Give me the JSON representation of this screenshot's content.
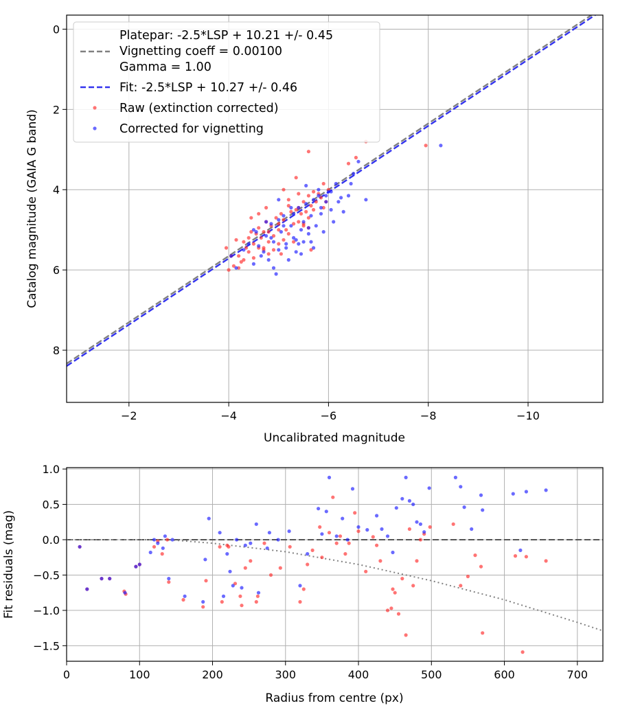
{
  "colors": {
    "platepar_line": "#808080",
    "fit_line": "#3333ee",
    "raw_points": "#ff2a2a",
    "corrected_points": "#1a1aff",
    "grid": "#b0b0b0",
    "zero_line": "#555555",
    "vignetting_curve": "#808080"
  },
  "chart_data": [
    {
      "type": "scatter",
      "xlabel": "Uncalibrated magnitude",
      "ylabel": "Catalog magnitude (GAIA G band)",
      "xlim": [
        -0.75,
        -11.5
      ],
      "ylim": [
        9.3,
        -0.35
      ],
      "x_inverted": true,
      "y_inverted": true,
      "xticks": [
        -2,
        -4,
        -6,
        -8,
        -10
      ],
      "xtick_labels": [
        "−2",
        "−4",
        "−6",
        "−8",
        "−10"
      ],
      "yticks": [
        0,
        2,
        4,
        6,
        8
      ],
      "ytick_labels": [
        "0",
        "2",
        "4",
        "6",
        "8"
      ],
      "grid": true,
      "legend_placement": "upper-left",
      "legend": [
        {
          "label": "Platepar: -2.5*LSP + 10.21 +/- 0.45",
          "marker": "none"
        },
        {
          "label": "Vignetting coeff = 0.00100",
          "marker": "dashed-line",
          "color_key": "platepar_line"
        },
        {
          "label": "Gamma = 1.00",
          "marker": "none"
        },
        {
          "label": "Fit: -2.5*LSP + 10.27 +/- 0.46",
          "marker": "dashed-line",
          "color_key": "fit_line"
        },
        {
          "label": "Raw (extinction corrected)",
          "marker": "dot",
          "color_key": "raw_points"
        },
        {
          "label": "Corrected for vignetting",
          "marker": "dot",
          "color_key": "corrected_points"
        }
      ],
      "lines": [
        {
          "name": "platepar",
          "style": "dashed",
          "color_key": "platepar_line",
          "x": [
            -0.75,
            -11.5
          ],
          "y": [
            8.335,
            -0.54
          ]
        },
        {
          "name": "fit",
          "style": "dashed",
          "color_key": "fit_line",
          "x": [
            -0.75,
            -11.5
          ],
          "y": [
            8.395,
            -0.48
          ]
        }
      ],
      "series": [
        {
          "name": "Raw (extinction corrected)",
          "color_key": "raw_points",
          "x": [
            -3.95,
            -4.0,
            -4.1,
            -4.2,
            -4.25,
            -4.3,
            -4.35,
            -4.4,
            -4.45,
            -4.5,
            -4.5,
            -4.55,
            -4.6,
            -4.6,
            -4.65,
            -4.7,
            -4.7,
            -4.75,
            -4.8,
            -4.8,
            -4.85,
            -4.9,
            -4.9,
            -4.95,
            -5.0,
            -5.0,
            -5.05,
            -5.1,
            -5.1,
            -5.15,
            -5.2,
            -5.2,
            -5.25,
            -5.3,
            -5.3,
            -5.35,
            -5.4,
            -5.4,
            -5.45,
            -5.5,
            -5.5,
            -5.55,
            -5.6,
            -5.6,
            -5.65,
            -5.7,
            -5.7,
            -5.75,
            -5.8,
            -5.85,
            -5.9,
            -6.0,
            -4.2,
            -4.4,
            -4.6,
            -4.8,
            -5.0,
            -5.2,
            -5.4,
            -5.6,
            -4.3,
            -4.7,
            -5.1,
            -5.5,
            -5.9,
            -4.05,
            -4.15,
            -4.45,
            -4.75,
            -5.05,
            -5.35,
            -5.65,
            -5.95,
            -6.4,
            -6.55,
            -6.75,
            -7.95,
            -5.6
          ],
          "y": [
            5.45,
            6.0,
            5.9,
            5.65,
            5.8,
            5.3,
            5.45,
            5.55,
            5.05,
            5.35,
            5.7,
            5.1,
            5.45,
            4.95,
            5.2,
            5.5,
            5.05,
            4.8,
            5.3,
            5.6,
            4.9,
            5.15,
            5.5,
            4.7,
            5.0,
            5.35,
            4.6,
            5.25,
            4.75,
            5.0,
            4.4,
            5.1,
            4.55,
            4.85,
            5.3,
            4.5,
            4.8,
            4.1,
            4.6,
            4.9,
            4.3,
            4.55,
            4.15,
            4.7,
            4.4,
            4.05,
            4.5,
            4.3,
            4.1,
            4.2,
            3.85,
            4.0,
            5.95,
            5.2,
            4.6,
            5.05,
            4.85,
            4.25,
            4.45,
            3.05,
            5.75,
            5.45,
            4.0,
            4.85,
            4.45,
            5.65,
            5.25,
            4.7,
            4.45,
            5.6,
            3.7,
            5.5,
            4.3,
            3.35,
            3.2,
            2.8,
            2.9,
            4.95
          ]
        },
        {
          "name": "Corrected for vignetting",
          "color_key": "corrected_points",
          "x": [
            -4.05,
            -4.15,
            -4.3,
            -4.4,
            -4.5,
            -4.55,
            -4.6,
            -4.7,
            -4.75,
            -4.8,
            -4.85,
            -4.9,
            -4.95,
            -5.0,
            -5.0,
            -5.05,
            -5.1,
            -5.15,
            -5.2,
            -5.25,
            -5.3,
            -5.3,
            -5.35,
            -5.4,
            -5.45,
            -5.5,
            -5.5,
            -5.55,
            -5.6,
            -5.65,
            -5.7,
            -5.7,
            -5.75,
            -5.8,
            -5.85,
            -5.9,
            -5.95,
            -6.0,
            -6.05,
            -6.1,
            -6.15,
            -6.2,
            -6.3,
            -6.4,
            -6.5,
            -6.6,
            -6.75,
            -4.5,
            -4.65,
            -4.85,
            -5.1,
            -5.25,
            -5.45,
            -5.65,
            -5.85,
            -6.05,
            -6.25,
            -6.45,
            -8.25,
            -4.9,
            -5.15,
            -5.4,
            -5.6,
            -5.8,
            -4.75,
            -5.0,
            -5.35,
            -5.55,
            -5.95
          ],
          "y": [
            5.65,
            5.95,
            5.5,
            5.35,
            5.85,
            5.05,
            5.4,
            5.55,
            5.15,
            5.75,
            4.85,
            5.3,
            6.1,
            4.75,
            5.5,
            5.05,
            4.65,
            5.35,
            5.75,
            4.9,
            4.6,
            5.2,
            5.55,
            4.45,
            5.0,
            5.3,
            4.8,
            4.35,
            5.1,
            4.65,
            4.25,
            5.45,
            4.9,
            4.15,
            4.6,
            5.05,
            4.3,
            4.05,
            4.5,
            4.8,
            3.85,
            4.3,
            4.55,
            4.15,
            3.6,
            3.3,
            4.25,
            5.0,
            5.65,
            5.2,
            4.9,
            4.45,
            5.6,
            5.3,
            4.45,
            4.05,
            4.2,
            3.85,
            2.9,
            5.95,
            5.45,
            5.35,
            4.95,
            4.0,
            4.8,
            4.25,
            5.25,
            3.9,
            4.15
          ]
        }
      ]
    },
    {
      "type": "scatter",
      "xlabel": "Radius from centre (px)",
      "ylabel": "Fit residuals (mag)",
      "xlim": [
        0,
        735
      ],
      "ylim": [
        -1.72,
        1.02
      ],
      "xticks": [
        0,
        100,
        200,
        300,
        400,
        500,
        600,
        700
      ],
      "xtick_labels": [
        "0",
        "100",
        "200",
        "300",
        "400",
        "500",
        "600",
        "700"
      ],
      "yticks": [
        1.0,
        0.5,
        0.0,
        -0.5,
        -1.0,
        -1.5
      ],
      "ytick_labels": [
        "1.0",
        "0.5",
        "0.0",
        "−0.5",
        "−1.0",
        "−1.5"
      ],
      "grid": true,
      "zero_line": {
        "y": 0.0,
        "style": "dashed",
        "color_key": "zero_line"
      },
      "vignetting_curve": {
        "style": "dotted",
        "color_key": "vignetting_curve",
        "x": [
          0,
          100,
          140,
          200,
          300,
          400,
          500,
          600,
          700,
          735
        ],
        "y": [
          0.0,
          0.0,
          0.0,
          -0.05,
          -0.17,
          -0.35,
          -0.58,
          -0.85,
          -1.17,
          -1.29
        ]
      },
      "series": [
        {
          "name": "Raw",
          "color_key": "raw_points",
          "x": [
            18,
            28,
            48,
            59,
            79,
            81,
            95,
            100,
            120,
            125,
            131,
            138,
            140,
            160,
            187,
            191,
            210,
            213,
            220,
            222,
            231,
            238,
            240,
            245,
            252,
            260,
            262,
            271,
            280,
            293,
            306,
            320,
            325,
            330,
            337,
            347,
            350,
            360,
            365,
            370,
            375,
            382,
            387,
            395,
            400,
            410,
            420,
            425,
            430,
            440,
            445,
            447,
            450,
            455,
            460,
            465,
            470,
            475,
            480,
            485,
            490,
            498,
            530,
            540,
            550,
            560,
            568,
            570,
            615,
            625,
            630,
            657
          ],
          "y": [
            -0.1,
            -0.7,
            -0.55,
            -0.55,
            -0.73,
            -0.77,
            -0.38,
            -0.35,
            -0.1,
            -0.02,
            -0.2,
            -0.0,
            -0.6,
            -0.85,
            -0.95,
            -0.58,
            -0.1,
            -0.88,
            -0.08,
            -0.1,
            -0.62,
            -0.8,
            -0.93,
            -0.4,
            -0.3,
            -0.88,
            -0.8,
            -0.05,
            -0.5,
            -0.4,
            -0.1,
            -0.88,
            -0.7,
            -0.35,
            -0.15,
            0.18,
            -0.25,
            0.1,
            0.6,
            -0.05,
            0.05,
            -0.2,
            -0.05,
            0.38,
            0.12,
            -0.45,
            0.04,
            -0.08,
            -0.3,
            -1.0,
            -0.97,
            -0.7,
            -0.75,
            -1.05,
            -0.55,
            -1.35,
            0.15,
            -0.65,
            -0.3,
            0.0,
            0.08,
            0.18,
            0.22,
            -0.65,
            -0.52,
            -0.22,
            -0.38,
            -1.32,
            -0.23,
            -1.59,
            -0.24,
            -0.3
          ]
        },
        {
          "name": "Corrected",
          "color_key": "corrected_points",
          "x": [
            18,
            28,
            48,
            59,
            80,
            95,
            100,
            115,
            120,
            125,
            132,
            135,
            140,
            145,
            162,
            187,
            190,
            195,
            210,
            215,
            220,
            224,
            228,
            233,
            240,
            245,
            252,
            260,
            263,
            275,
            278,
            290,
            305,
            320,
            330,
            345,
            350,
            356,
            360,
            370,
            378,
            385,
            392,
            400,
            412,
            425,
            432,
            440,
            447,
            452,
            460,
            465,
            470,
            475,
            480,
            485,
            490,
            497,
            533,
            540,
            545,
            555,
            568,
            570,
            612,
            622,
            630,
            657
          ],
          "y": [
            -0.1,
            -0.7,
            -0.55,
            -0.55,
            -0.75,
            -0.38,
            -0.35,
            -0.18,
            0.0,
            -0.05,
            -0.12,
            0.05,
            -0.55,
            -0.0,
            -0.8,
            -0.88,
            -0.28,
            0.3,
            0.1,
            -0.8,
            -0.2,
            -0.45,
            -0.65,
            0.0,
            -0.68,
            -0.08,
            -0.05,
            0.22,
            -0.75,
            -0.12,
            0.1,
            0.0,
            0.12,
            -0.65,
            -0.2,
            0.44,
            0.08,
            0.4,
            0.88,
            0.05,
            0.3,
            0.0,
            0.72,
            0.18,
            0.14,
            0.34,
            0.15,
            0.05,
            -0.18,
            0.45,
            0.58,
            0.88,
            0.55,
            0.5,
            0.25,
            0.22,
            0.11,
            0.73,
            0.88,
            0.75,
            0.46,
            0.15,
            0.63,
            0.42,
            0.65,
            -0.15,
            0.68,
            0.7
          ]
        }
      ]
    }
  ]
}
